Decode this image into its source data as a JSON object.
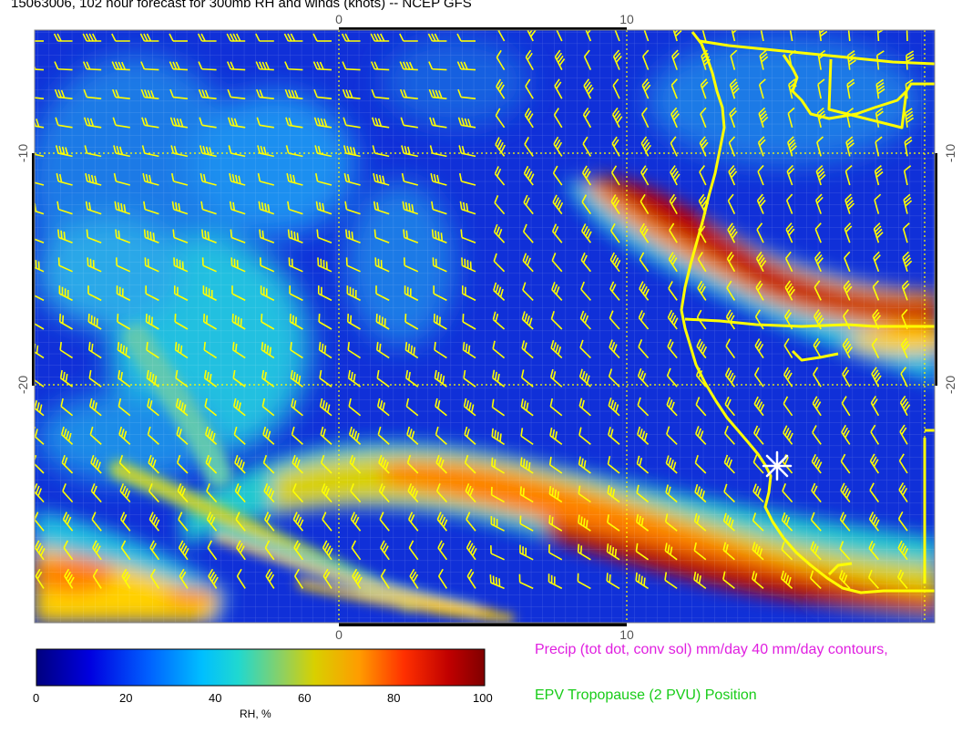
{
  "title": "15063006, 102 hour forecast for 300mb RH and winds (knots) -- NCEP GFS",
  "axes": {
    "x_ticks": [
      "0",
      "10"
    ],
    "y_ticks": [
      "-10",
      "-20"
    ]
  },
  "colorbar": {
    "label": "RH, %",
    "ticks": [
      "0",
      "20",
      "40",
      "60",
      "80",
      "100"
    ],
    "range": [
      0,
      100
    ]
  },
  "legend_notes": {
    "precip": "Precip (tot dot, conv sol) mm/day 40 mm/day contours,",
    "tropopause": "EPV Tropopause (2 PVU) Position"
  },
  "colors": {
    "barb": "#ffff00",
    "coast": "#ffff00",
    "precip_text": "#e020e0",
    "tropopause_text": "#18cc18"
  },
  "icons": [
    "wind-barb-icon",
    "station-star-icon"
  ]
}
